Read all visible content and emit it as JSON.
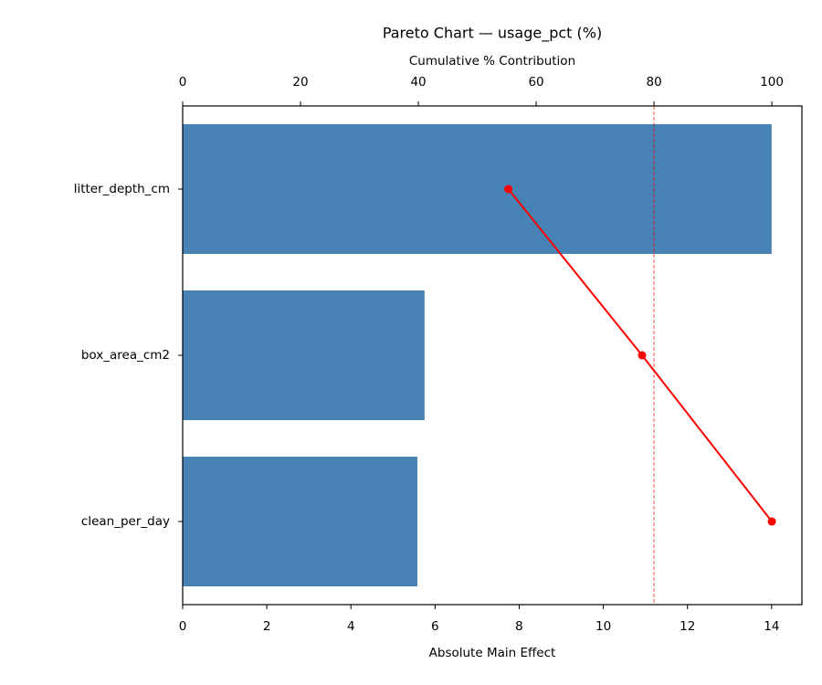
{
  "chart_data": {
    "type": "bar",
    "orientation": "horizontal",
    "title": "Pareto Chart — usage_pct (%)",
    "xlabel": "Absolute Main Effect",
    "x2label": "Cumulative % Contribution",
    "categories": [
      "litter_depth_cm",
      "box_area_cm2",
      "clean_per_day"
    ],
    "values": [
      14.0,
      5.75,
      5.58
    ],
    "color": "#4682b4",
    "cumulative": {
      "values": [
        55.27,
        77.97,
        100
      ],
      "color": "#ff0000"
    },
    "threshold": 80,
    "threshold_color": "#ff0000",
    "xlim": [
      0,
      14.72
    ],
    "xticks": [
      0,
      2,
      4,
      6,
      8,
      10,
      12,
      14
    ],
    "x2lim": [
      0,
      105.1
    ],
    "x2ticks": [
      0,
      20,
      40,
      60,
      80,
      100
    ]
  }
}
